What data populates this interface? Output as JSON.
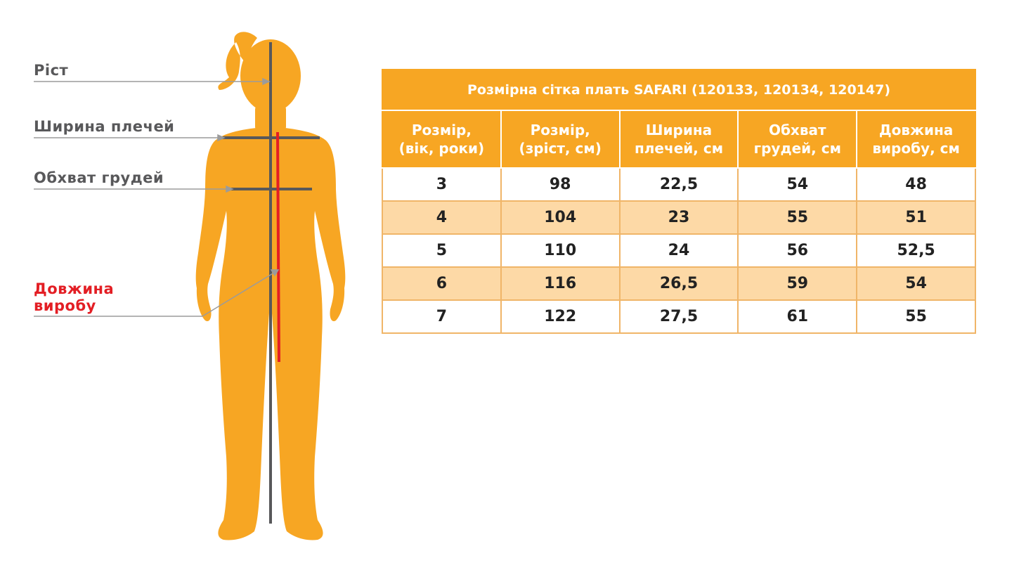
{
  "colors": {
    "figure": "#f7a623",
    "measure_line": "#58585a",
    "product_length_line": "#e31e24",
    "header_bg": "#f7a623",
    "alt_row_bg": "#fdd9a6",
    "label_text": "#58585a",
    "label_red": "#e31e24"
  },
  "labels": {
    "height": "Ріст",
    "shoulder_width": "Ширина плечей",
    "chest": "Обхват грудей",
    "product_length_line1": "Довжина",
    "product_length_line2": "виробу"
  },
  "table": {
    "title": "Розмірна сітка плать SAFARI (120133, 120134, 120147)",
    "headers": [
      [
        "Розмір,",
        "(вік, роки)"
      ],
      [
        "Розмір,",
        "(зріст, см)"
      ],
      [
        "Ширина",
        "плечей, см"
      ],
      [
        "Обхват",
        "грудей, см"
      ],
      [
        "Довжина",
        "виробу, см"
      ]
    ],
    "rows": [
      [
        "3",
        "98",
        "22,5",
        "54",
        "48"
      ],
      [
        "4",
        "104",
        "23",
        "55",
        "51"
      ],
      [
        "5",
        "110",
        "24",
        "56",
        "52,5"
      ],
      [
        "6",
        "116",
        "26,5",
        "59",
        "54"
      ],
      [
        "7",
        "122",
        "27,5",
        "61",
        "55"
      ]
    ]
  }
}
